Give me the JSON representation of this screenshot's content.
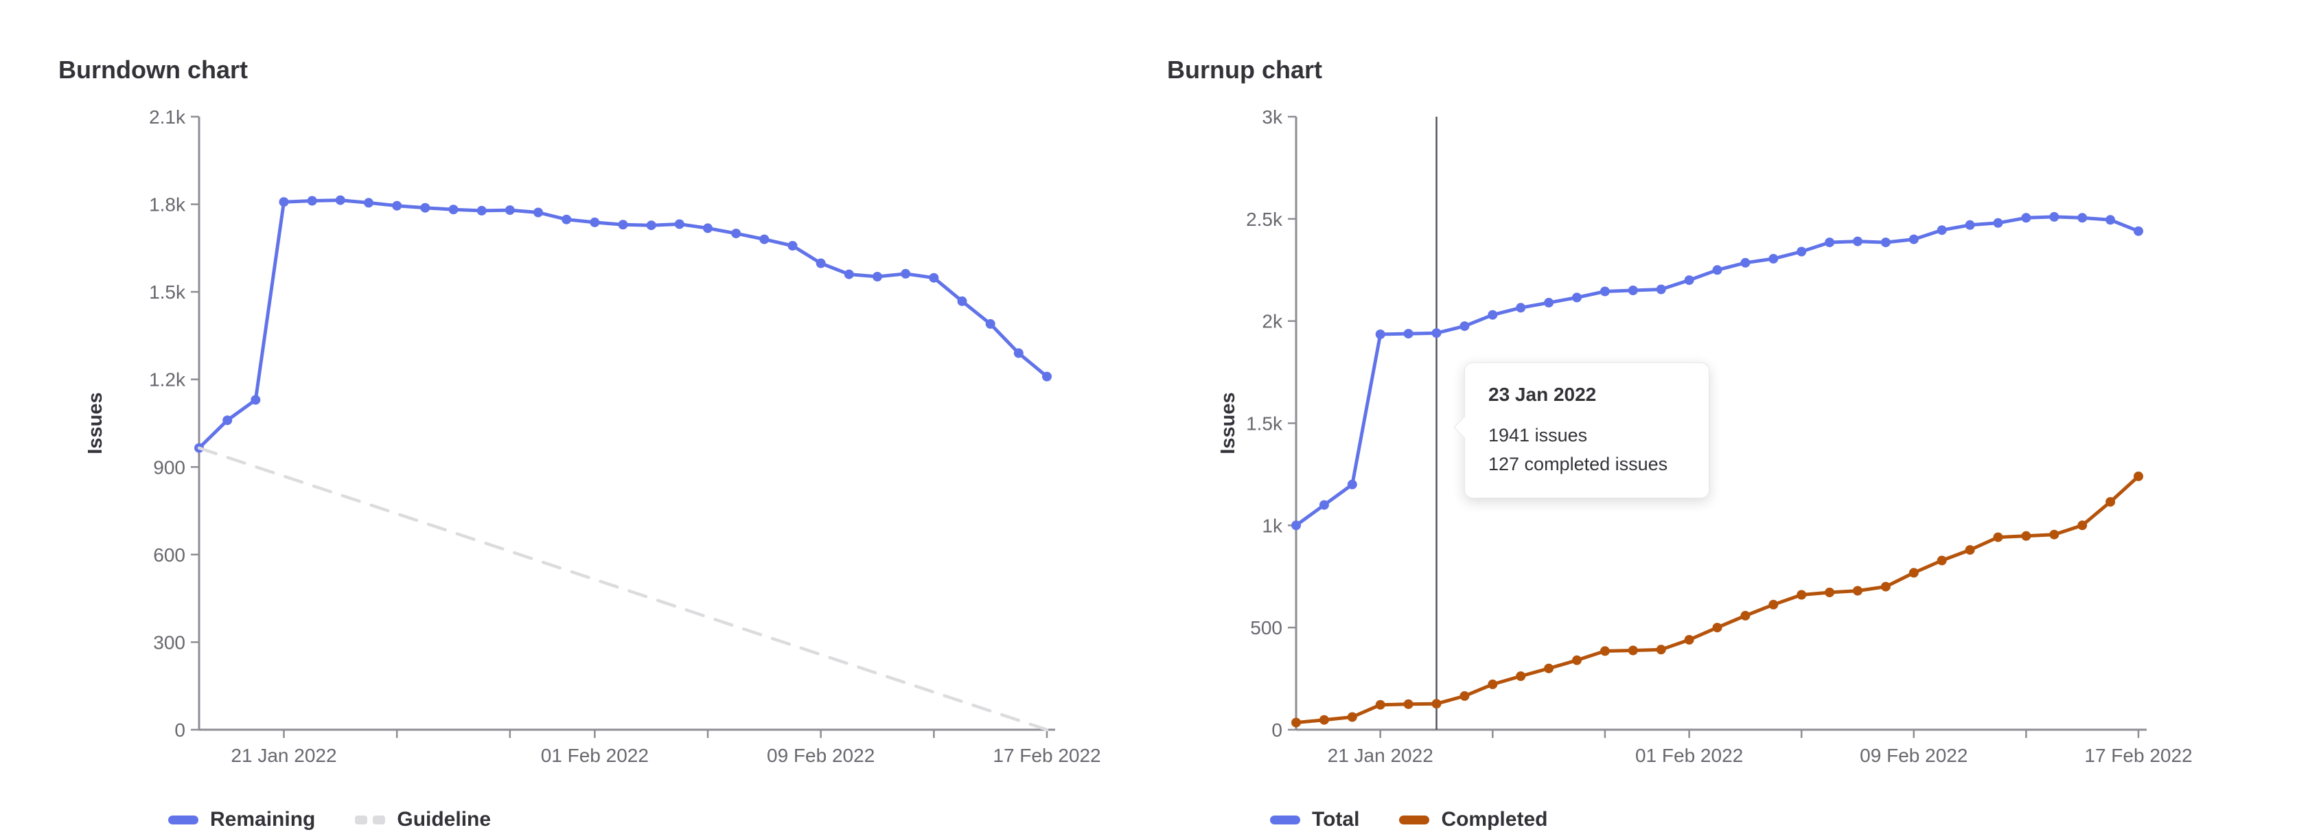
{
  "page": {
    "background": "#ffffff"
  },
  "colors": {
    "blue": "#6173e9",
    "orange": "#b5530b",
    "guideline": "#dcdcde",
    "axis": "#8d8d94",
    "tick_text": "#67676e",
    "heading_text": "#333238",
    "annotation_line": "#54545c",
    "tooltip_border": "#e7e7ea"
  },
  "chart_data": [
    {
      "id": "burndown",
      "type": "line",
      "title": "Burndown chart",
      "ylabel": "Issues",
      "xlabel": "",
      "ylim": [
        0,
        2100
      ],
      "grid": false,
      "legend_position": "bottom-left",
      "x_dates": [
        "18 Jan 2022",
        "19 Jan 2022",
        "20 Jan 2022",
        "21 Jan 2022",
        "22 Jan 2022",
        "23 Jan 2022",
        "24 Jan 2022",
        "25 Jan 2022",
        "26 Jan 2022",
        "27 Jan 2022",
        "28 Jan 2022",
        "29 Jan 2022",
        "30 Jan 2022",
        "31 Jan 2022",
        "01 Feb 2022",
        "02 Feb 2022",
        "03 Feb 2022",
        "04 Feb 2022",
        "05 Feb 2022",
        "06 Feb 2022",
        "07 Feb 2022",
        "08 Feb 2022",
        "09 Feb 2022",
        "10 Feb 2022",
        "11 Feb 2022",
        "12 Feb 2022",
        "13 Feb 2022",
        "14 Feb 2022",
        "15 Feb 2022",
        "16 Feb 2022",
        "17 Feb 2022"
      ],
      "x_ticks": [
        {
          "index": 3,
          "label": "21 Jan 2022"
        },
        {
          "index": 7,
          "label": ""
        },
        {
          "index": 11,
          "label": ""
        },
        {
          "index": 14,
          "label": "01 Feb 2022"
        },
        {
          "index": 18,
          "label": ""
        },
        {
          "index": 22,
          "label": "09 Feb 2022"
        },
        {
          "index": 26,
          "label": ""
        },
        {
          "index": 30,
          "label": "17 Feb 2022"
        }
      ],
      "y_ticks": [
        {
          "value": 0,
          "label": "0"
        },
        {
          "value": 300,
          "label": "300"
        },
        {
          "value": 600,
          "label": "600"
        },
        {
          "value": 900,
          "label": "900"
        },
        {
          "value": 1200,
          "label": "1.2k"
        },
        {
          "value": 1500,
          "label": "1.5k"
        },
        {
          "value": 1800,
          "label": "1.8k"
        },
        {
          "value": 2100,
          "label": "2.1k"
        }
      ],
      "series": [
        {
          "name": "Remaining",
          "color": "#6173e9",
          "dashed": false,
          "show_points": true,
          "values": [
            965,
            1060,
            1130,
            1808,
            1812,
            1814,
            1805,
            1795,
            1788,
            1782,
            1778,
            1780,
            1772,
            1748,
            1738,
            1730,
            1728,
            1732,
            1718,
            1700,
            1680,
            1658,
            1598,
            1560,
            1552,
            1562,
            1548,
            1468,
            1390,
            1290,
            1210
          ]
        },
        {
          "name": "Guideline",
          "color": "#dcdcde",
          "dashed": true,
          "show_points": false,
          "x_indices": [
            0,
            30
          ],
          "values": [
            965,
            0
          ]
        }
      ]
    },
    {
      "id": "burnup",
      "type": "line",
      "title": "Burnup chart",
      "ylabel": "Issues",
      "xlabel": "",
      "ylim": [
        0,
        3000
      ],
      "grid": false,
      "legend_position": "bottom-left",
      "x_dates": [
        "18 Jan 2022",
        "19 Jan 2022",
        "20 Jan 2022",
        "21 Jan 2022",
        "22 Jan 2022",
        "23 Jan 2022",
        "24 Jan 2022",
        "25 Jan 2022",
        "26 Jan 2022",
        "27 Jan 2022",
        "28 Jan 2022",
        "29 Jan 2022",
        "30 Jan 2022",
        "31 Jan 2022",
        "01 Feb 2022",
        "02 Feb 2022",
        "03 Feb 2022",
        "04 Feb 2022",
        "05 Feb 2022",
        "06 Feb 2022",
        "07 Feb 2022",
        "08 Feb 2022",
        "09 Feb 2022",
        "10 Feb 2022",
        "11 Feb 2022",
        "12 Feb 2022",
        "13 Feb 2022",
        "14 Feb 2022",
        "15 Feb 2022",
        "16 Feb 2022",
        "17 Feb 2022"
      ],
      "x_ticks": [
        {
          "index": 3,
          "label": "21 Jan 2022"
        },
        {
          "index": 7,
          "label": ""
        },
        {
          "index": 11,
          "label": ""
        },
        {
          "index": 14,
          "label": "01 Feb 2022"
        },
        {
          "index": 18,
          "label": ""
        },
        {
          "index": 22,
          "label": "09 Feb 2022"
        },
        {
          "index": 26,
          "label": ""
        },
        {
          "index": 30,
          "label": "17 Feb 2022"
        }
      ],
      "y_ticks": [
        {
          "value": 0,
          "label": "0"
        },
        {
          "value": 500,
          "label": "500"
        },
        {
          "value": 1000,
          "label": "1k"
        },
        {
          "value": 1500,
          "label": "1.5k"
        },
        {
          "value": 2000,
          "label": "2k"
        },
        {
          "value": 2500,
          "label": "2.5k"
        },
        {
          "value": 3000,
          "label": "3k"
        }
      ],
      "annotation": {
        "x_index": 5,
        "date": "23 Jan 2022"
      },
      "tooltip": {
        "title": "23 Jan 2022",
        "lines": [
          "1941 issues",
          "127 completed issues"
        ]
      },
      "series": [
        {
          "name": "Total",
          "color": "#6173e9",
          "dashed": false,
          "show_points": true,
          "values": [
            1000,
            1100,
            1200,
            1935,
            1938,
            1941,
            1975,
            2030,
            2065,
            2090,
            2115,
            2145,
            2150,
            2155,
            2200,
            2250,
            2285,
            2305,
            2340,
            2385,
            2390,
            2385,
            2400,
            2445,
            2470,
            2480,
            2505,
            2510,
            2505,
            2495,
            2440
          ]
        },
        {
          "name": "Completed",
          "color": "#b5530b",
          "dashed": false,
          "show_points": true,
          "values": [
            35,
            48,
            62,
            122,
            125,
            127,
            165,
            222,
            262,
            300,
            340,
            385,
            388,
            392,
            440,
            500,
            558,
            612,
            660,
            672,
            680,
            700,
            768,
            828,
            880,
            942,
            948,
            955,
            1000,
            1115,
            1240
          ]
        }
      ]
    }
  ]
}
